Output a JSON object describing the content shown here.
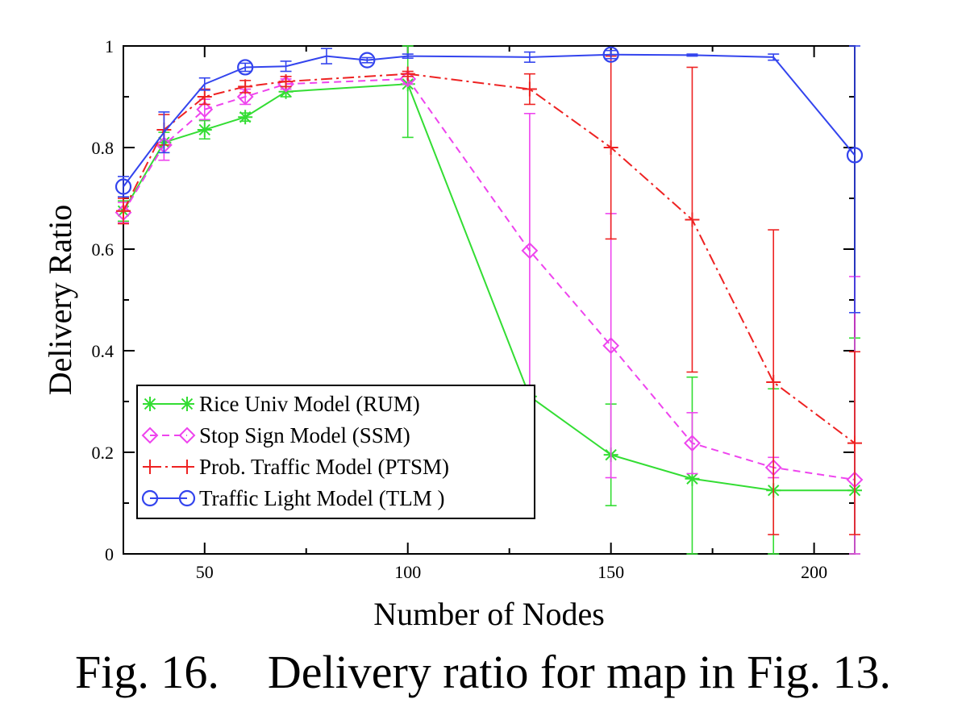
{
  "chart_data": {
    "type": "line",
    "title": "",
    "xlabel": "Number of Nodes",
    "ylabel": "Delivery Ratio",
    "xlim": [
      30,
      210
    ],
    "ylim": [
      0,
      1
    ],
    "xticks": [
      50,
      100,
      150,
      200
    ],
    "yticks": [
      0,
      0.2,
      0.4,
      0.6,
      0.8,
      1
    ],
    "xtick_labels": [
      "50",
      "100",
      "150",
      "200"
    ],
    "ytick_labels": [
      "0",
      "0.2",
      "0.4",
      "0.6",
      "0.8",
      "1"
    ],
    "legend_position": "bottom-left",
    "series": [
      {
        "name": "Rice Univ Model (RUM)",
        "color": "#33dd33",
        "marker": "asterisk",
        "dash": "solid",
        "x": [
          30,
          40,
          50,
          60,
          70,
          100,
          130,
          150,
          170,
          190,
          210
        ],
        "y": [
          0.675,
          0.81,
          0.835,
          0.86,
          0.91,
          0.925,
          0.31,
          0.195,
          0.148,
          0.125,
          0.125
        ],
        "err": [
          0.02,
          0.02,
          0.018,
          0.008,
          0.01,
          0.105,
          0.015,
          0.1,
          0.2,
          0.2,
          0.3
        ]
      },
      {
        "name": "Stop Sign Model (SSM)",
        "color": "#ee44ee",
        "marker": "diamond",
        "dash": "dashed",
        "x": [
          30,
          40,
          50,
          60,
          70,
          100,
          130,
          150,
          170,
          190,
          210
        ],
        "y": [
          0.672,
          0.805,
          0.875,
          0.9,
          0.925,
          0.935,
          0.597,
          0.41,
          0.218,
          0.17,
          0.146
        ],
        "err": [
          0.02,
          0.03,
          0.02,
          0.015,
          0.01,
          0.01,
          0.27,
          0.26,
          0.06,
          0.02,
          0.4
        ]
      },
      {
        "name": "Prob. Traffic Model (PTSM)",
        "color": "#ee2222",
        "marker": "plus",
        "dash": "dashdot",
        "x": [
          30,
          40,
          50,
          60,
          70,
          100,
          130,
          150,
          170,
          190,
          210
        ],
        "y": [
          0.675,
          0.835,
          0.9,
          0.92,
          0.93,
          0.945,
          0.915,
          0.8,
          0.658,
          0.338,
          0.218
        ],
        "err": [
          0.025,
          0.03,
          0.015,
          0.012,
          0.01,
          0.005,
          0.03,
          0.18,
          0.3,
          0.3,
          0.18
        ]
      },
      {
        "name": "Traffic Light Model (TLM )",
        "color": "#3344ee",
        "marker": "circle",
        "dash": "solid",
        "x": [
          30,
          40,
          50,
          60,
          70,
          80,
          90,
          100,
          130,
          150,
          170,
          190,
          210
        ],
        "y": [
          0.723,
          0.83,
          0.925,
          0.958,
          0.96,
          0.98,
          0.972,
          0.98,
          0.978,
          0.983,
          0.982,
          0.978,
          0.785
        ],
        "err": [
          0.02,
          0.04,
          0.012,
          0.008,
          0.01,
          0.015,
          0.005,
          0.004,
          0.01,
          0.008,
          0.002,
          0.006,
          0.31
        ]
      }
    ]
  },
  "caption": {
    "number": "Fig. 16.",
    "text": "Delivery ratio for map in Fig. 13."
  }
}
